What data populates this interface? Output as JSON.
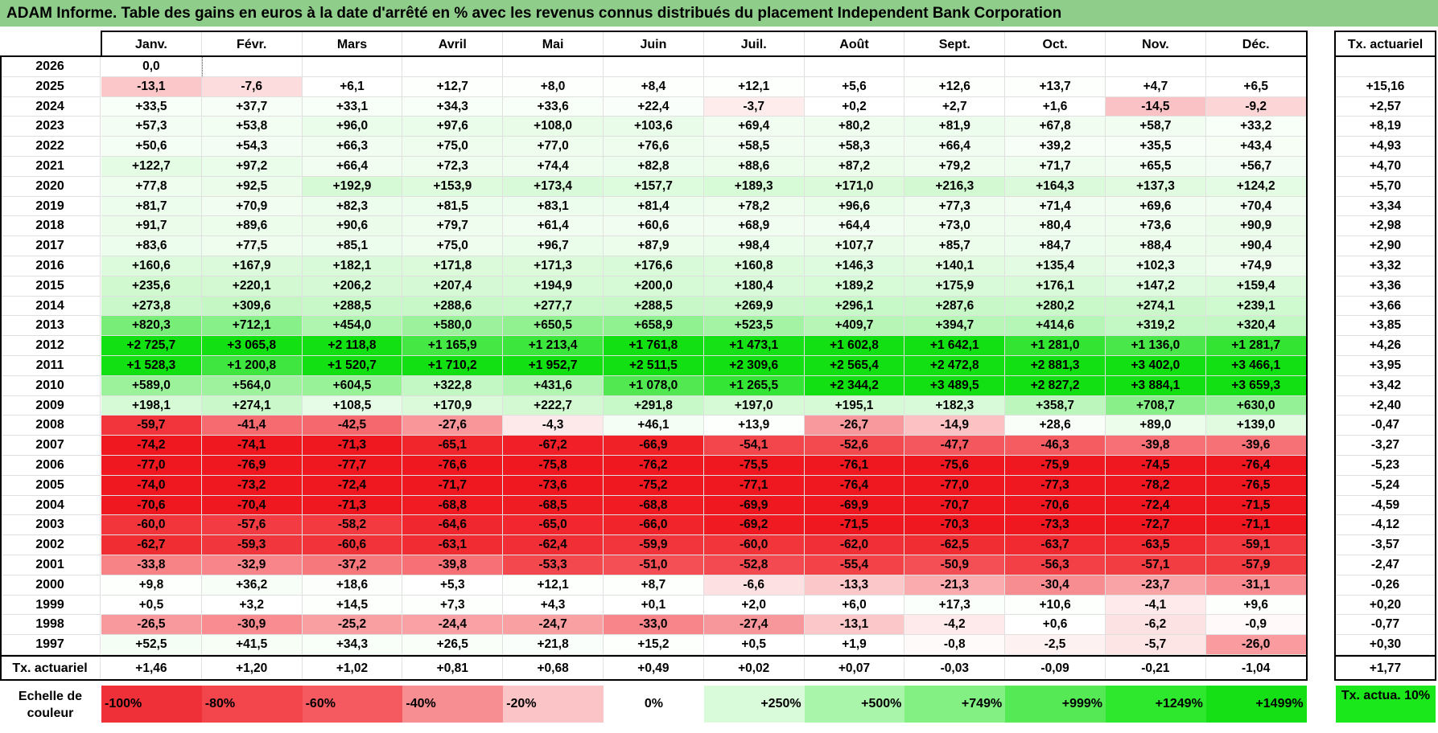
{
  "title": "ADAM Informe. Table des gains en euros à la date d'arrêté en % avec les revenus connus distribués du placement Independent Bank Corporation",
  "chart_data": {
    "type": "table",
    "title": "ADAM Informe. Table des gains en euros à la date d'arrêté en % avec les revenus connus distribués du placement Independent Bank Corporation",
    "columns": [
      "Janv.",
      "Févr.",
      "Mars",
      "Avril",
      "Mai",
      "Juin",
      "Juil.",
      "Août",
      "Sept.",
      "Oct.",
      "Nov.",
      "Déc."
    ],
    "annual_header": "Tx. actuariel",
    "rows": [
      {
        "year": "2026",
        "values": [
          "0,0",
          "",
          "",
          "",
          "",
          "",
          "",
          "",
          "",
          "",
          "",
          ""
        ],
        "rate": ""
      },
      {
        "year": "2025",
        "values": [
          "-13,1",
          "-7,6",
          "+6,1",
          "+12,7",
          "+8,0",
          "+8,4",
          "+12,1",
          "+5,6",
          "+12,6",
          "+13,7",
          "+4,7",
          "+6,5"
        ],
        "rate": "+15,16"
      },
      {
        "year": "2024",
        "values": [
          "+33,5",
          "+37,7",
          "+33,1",
          "+34,3",
          "+33,6",
          "+22,4",
          "-3,7",
          "+0,2",
          "+2,7",
          "+1,6",
          "-14,5",
          "-9,2"
        ],
        "rate": "+2,57"
      },
      {
        "year": "2023",
        "values": [
          "+57,3",
          "+53,8",
          "+96,0",
          "+97,6",
          "+108,0",
          "+103,6",
          "+69,4",
          "+80,2",
          "+81,9",
          "+67,8",
          "+58,7",
          "+33,2"
        ],
        "rate": "+8,19"
      },
      {
        "year": "2022",
        "values": [
          "+50,6",
          "+54,3",
          "+66,3",
          "+75,0",
          "+77,0",
          "+76,6",
          "+58,5",
          "+58,3",
          "+66,4",
          "+39,2",
          "+35,5",
          "+43,4"
        ],
        "rate": "+4,93"
      },
      {
        "year": "2021",
        "values": [
          "+122,7",
          "+97,2",
          "+66,4",
          "+72,3",
          "+74,4",
          "+82,8",
          "+88,6",
          "+87,2",
          "+79,2",
          "+71,7",
          "+65,5",
          "+56,7"
        ],
        "rate": "+4,70"
      },
      {
        "year": "2020",
        "values": [
          "+77,8",
          "+92,5",
          "+192,9",
          "+153,9",
          "+173,4",
          "+157,7",
          "+189,3",
          "+171,0",
          "+216,3",
          "+164,3",
          "+137,3",
          "+124,2"
        ],
        "rate": "+5,70"
      },
      {
        "year": "2019",
        "values": [
          "+81,7",
          "+70,9",
          "+82,3",
          "+81,5",
          "+83,1",
          "+81,4",
          "+78,2",
          "+96,6",
          "+77,3",
          "+71,4",
          "+69,6",
          "+70,4"
        ],
        "rate": "+3,34"
      },
      {
        "year": "2018",
        "values": [
          "+91,7",
          "+89,6",
          "+90,6",
          "+79,7",
          "+61,4",
          "+60,6",
          "+68,9",
          "+64,4",
          "+73,0",
          "+80,4",
          "+73,6",
          "+90,9"
        ],
        "rate": "+2,98"
      },
      {
        "year": "2017",
        "values": [
          "+83,6",
          "+77,5",
          "+85,1",
          "+75,0",
          "+96,7",
          "+87,9",
          "+98,4",
          "+107,7",
          "+85,7",
          "+84,7",
          "+88,4",
          "+90,4"
        ],
        "rate": "+2,90"
      },
      {
        "year": "2016",
        "values": [
          "+160,6",
          "+167,9",
          "+182,1",
          "+171,8",
          "+171,3",
          "+176,6",
          "+160,8",
          "+146,3",
          "+140,1",
          "+135,4",
          "+102,3",
          "+74,9"
        ],
        "rate": "+3,32"
      },
      {
        "year": "2015",
        "values": [
          "+235,6",
          "+220,1",
          "+206,2",
          "+207,4",
          "+194,9",
          "+200,0",
          "+180,4",
          "+189,2",
          "+175,9",
          "+176,1",
          "+147,2",
          "+159,4"
        ],
        "rate": "+3,36"
      },
      {
        "year": "2014",
        "values": [
          "+273,8",
          "+309,6",
          "+288,5",
          "+288,6",
          "+277,7",
          "+288,5",
          "+269,9",
          "+296,1",
          "+287,6",
          "+280,2",
          "+274,1",
          "+239,1"
        ],
        "rate": "+3,66"
      },
      {
        "year": "2013",
        "values": [
          "+820,3",
          "+712,1",
          "+454,0",
          "+580,0",
          "+650,5",
          "+658,9",
          "+523,5",
          "+409,7",
          "+394,7",
          "+414,6",
          "+319,2",
          "+320,4"
        ],
        "rate": "+3,85"
      },
      {
        "year": "2012",
        "values": [
          "+2 725,7",
          "+3 065,8",
          "+2 118,8",
          "+1 165,9",
          "+1 213,4",
          "+1 761,8",
          "+1 473,1",
          "+1 602,8",
          "+1 642,1",
          "+1 281,0",
          "+1 136,0",
          "+1 281,7"
        ],
        "rate": "+4,26"
      },
      {
        "year": "2011",
        "values": [
          "+1 528,3",
          "+1 200,8",
          "+1 520,7",
          "+1 710,2",
          "+1 952,7",
          "+2 511,5",
          "+2 309,6",
          "+2 565,4",
          "+2 472,8",
          "+2 881,3",
          "+3 402,0",
          "+3 466,1"
        ],
        "rate": "+3,95"
      },
      {
        "year": "2010",
        "values": [
          "+589,0",
          "+564,0",
          "+604,5",
          "+322,8",
          "+431,6",
          "+1 078,0",
          "+1 265,5",
          "+2 344,2",
          "+3 489,5",
          "+2 827,2",
          "+3 884,1",
          "+3 659,3"
        ],
        "rate": "+3,42"
      },
      {
        "year": "2009",
        "values": [
          "+198,1",
          "+274,1",
          "+108,5",
          "+170,9",
          "+222,7",
          "+291,8",
          "+197,0",
          "+195,1",
          "+182,3",
          "+358,7",
          "+708,7",
          "+630,0"
        ],
        "rate": "+2,40"
      },
      {
        "year": "2008",
        "values": [
          "-59,7",
          "-41,4",
          "-42,5",
          "-27,6",
          "-4,3",
          "+46,1",
          "+13,9",
          "-26,7",
          "-14,9",
          "+28,6",
          "+89,0",
          "+139,0"
        ],
        "rate": "-0,47"
      },
      {
        "year": "2007",
        "values": [
          "-74,2",
          "-74,1",
          "-71,3",
          "-65,1",
          "-67,2",
          "-66,9",
          "-54,1",
          "-52,6",
          "-47,7",
          "-46,3",
          "-39,8",
          "-39,6"
        ],
        "rate": "-3,27"
      },
      {
        "year": "2006",
        "values": [
          "-77,0",
          "-76,9",
          "-77,7",
          "-76,6",
          "-75,8",
          "-76,2",
          "-75,5",
          "-76,1",
          "-75,6",
          "-75,9",
          "-74,5",
          "-76,4"
        ],
        "rate": "-5,23"
      },
      {
        "year": "2005",
        "values": [
          "-74,0",
          "-73,2",
          "-72,4",
          "-71,7",
          "-73,6",
          "-75,2",
          "-77,1",
          "-76,4",
          "-77,0",
          "-77,3",
          "-78,2",
          "-76,5"
        ],
        "rate": "-5,24"
      },
      {
        "year": "2004",
        "values": [
          "-70,6",
          "-70,4",
          "-71,3",
          "-68,8",
          "-68,5",
          "-68,8",
          "-69,9",
          "-69,9",
          "-70,7",
          "-70,6",
          "-72,4",
          "-71,5"
        ],
        "rate": "-4,59"
      },
      {
        "year": "2003",
        "values": [
          "-60,0",
          "-57,6",
          "-58,2",
          "-64,6",
          "-65,0",
          "-66,0",
          "-69,2",
          "-71,5",
          "-70,3",
          "-73,3",
          "-72,7",
          "-71,1"
        ],
        "rate": "-4,12"
      },
      {
        "year": "2002",
        "values": [
          "-62,7",
          "-59,3",
          "-60,6",
          "-63,1",
          "-62,4",
          "-59,9",
          "-60,0",
          "-62,0",
          "-62,5",
          "-63,7",
          "-63,5",
          "-59,1"
        ],
        "rate": "-3,57"
      },
      {
        "year": "2001",
        "values": [
          "-33,8",
          "-32,9",
          "-37,2",
          "-39,8",
          "-53,3",
          "-51,0",
          "-52,8",
          "-55,4",
          "-50,9",
          "-56,3",
          "-57,1",
          "-57,9"
        ],
        "rate": "-2,47"
      },
      {
        "year": "2000",
        "values": [
          "+9,8",
          "+36,2",
          "+18,6",
          "+5,3",
          "+12,1",
          "+8,7",
          "-6,6",
          "-13,3",
          "-21,3",
          "-30,4",
          "-23,7",
          "-31,1"
        ],
        "rate": "-0,26"
      },
      {
        "year": "1999",
        "values": [
          "+0,5",
          "+3,2",
          "+14,5",
          "+7,3",
          "+4,3",
          "+0,1",
          "+2,0",
          "+6,0",
          "+17,3",
          "+10,6",
          "-4,1",
          "+9,6"
        ],
        "rate": "+0,20"
      },
      {
        "year": "1998",
        "values": [
          "-26,5",
          "-30,9",
          "-25,2",
          "-24,4",
          "-24,7",
          "-33,0",
          "-27,4",
          "-13,1",
          "-4,2",
          "+0,6",
          "-6,2",
          "-0,9"
        ],
        "rate": "-0,77"
      },
      {
        "year": "1997",
        "values": [
          "+52,5",
          "+41,5",
          "+34,3",
          "+26,5",
          "+21,8",
          "+15,2",
          "+0,5",
          "+1,9",
          "-0,8",
          "-2,5",
          "-5,7",
          "-26,0"
        ],
        "rate": "+0,30"
      }
    ],
    "summary": {
      "label": "Tx. actuariel",
      "values": [
        "+1,46",
        "+1,20",
        "+1,02",
        "+0,81",
        "+0,68",
        "+0,49",
        "+0,02",
        "+0,07",
        "-0,03",
        "-0,09",
        "-0,21",
        "-1,04"
      ],
      "rate": "+1,77"
    },
    "color_scale": {
      "label": "Echelle de couleur",
      "stops": [
        {
          "label": "-100%",
          "value": -100,
          "color": "#f03038"
        },
        {
          "label": "-80%",
          "value": -80,
          "color": "#f2454c"
        },
        {
          "label": "-60%",
          "value": -60,
          "color": "#f45a60"
        },
        {
          "label": "-40%",
          "value": -40,
          "color": "#f78e92"
        },
        {
          "label": "-20%",
          "value": -20,
          "color": "#fbc4c6"
        },
        {
          "label": "0%",
          "value": 0,
          "color": "#ffffff"
        },
        {
          "label": "+250%",
          "value": 250,
          "color": "#d9fbd9"
        },
        {
          "label": "+500%",
          "value": 500,
          "color": "#a9f5a9"
        },
        {
          "label": "+749%",
          "value": 749,
          "color": "#82f082"
        },
        {
          "label": "+999%",
          "value": 999,
          "color": "#55ea55"
        },
        {
          "label": "+1249%",
          "value": 1249,
          "color": "#2ee82e"
        },
        {
          "label": "+1499%",
          "value": 1499,
          "color": "#15e015"
        }
      ],
      "reference_label": "Tx. actua. 10%",
      "reference_color": "#1ae81a"
    }
  }
}
